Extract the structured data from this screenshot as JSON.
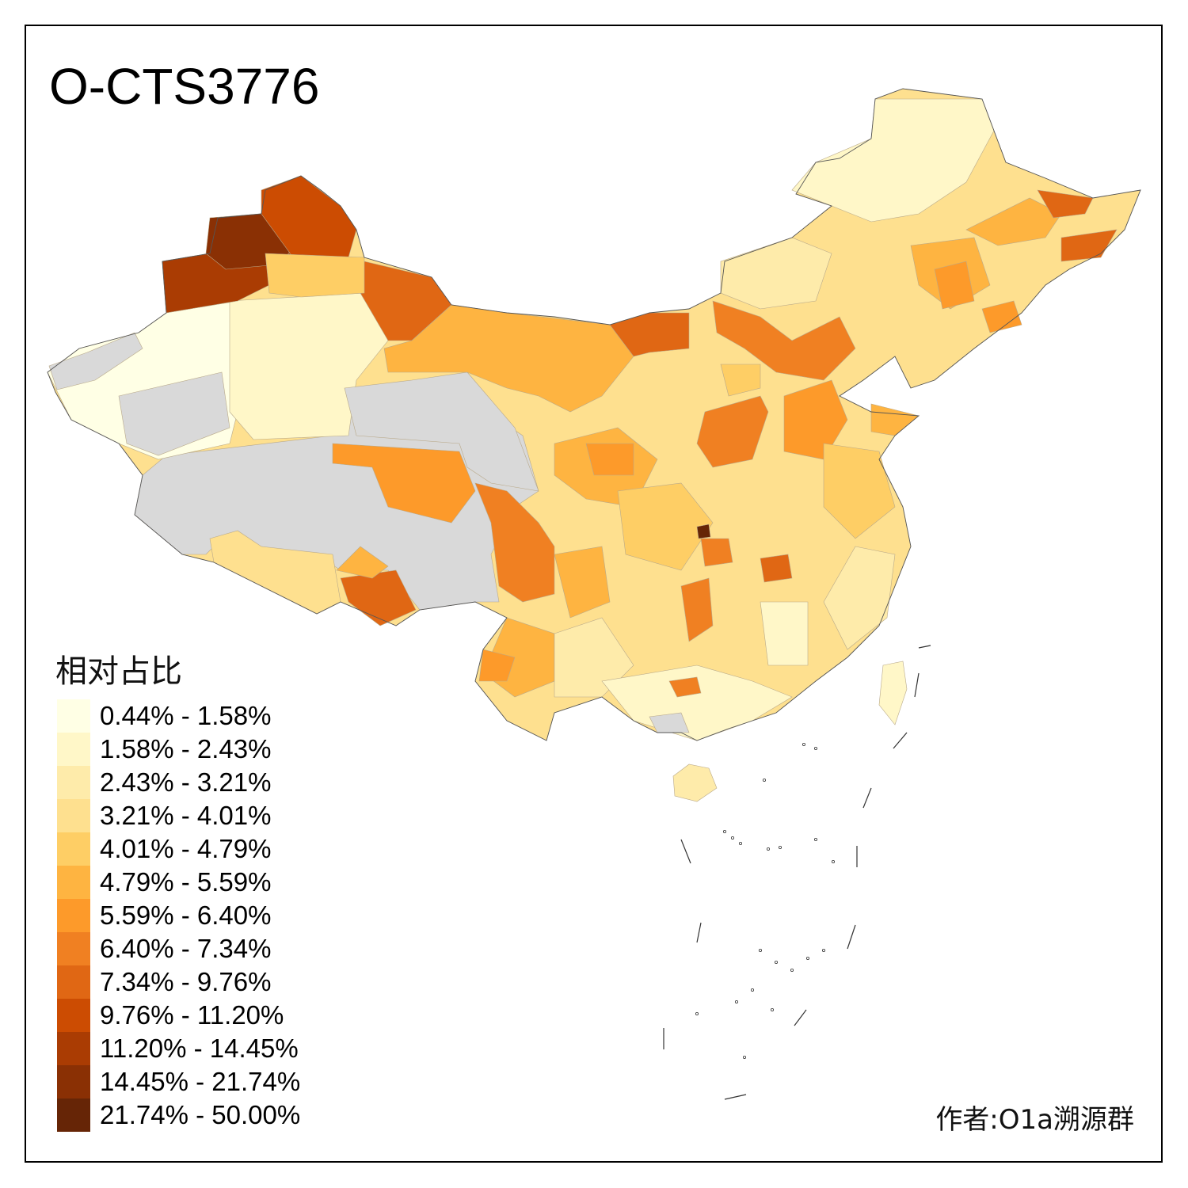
{
  "title": "O-CTS3776",
  "legend": {
    "title": "相对占比",
    "items": [
      {
        "label": "0.44% - 1.58%",
        "color": "#FFFFE5"
      },
      {
        "label": "1.58% - 2.43%",
        "color": "#FFF7C8"
      },
      {
        "label": "2.43% - 3.21%",
        "color": "#FEEBAA"
      },
      {
        "label": "3.21% - 4.01%",
        "color": "#FEE08F"
      },
      {
        "label": "4.01% - 4.79%",
        "color": "#FECE65"
      },
      {
        "label": "4.79% - 5.59%",
        "color": "#FEB441"
      },
      {
        "label": "5.59% - 6.40%",
        "color": "#FD9A2A"
      },
      {
        "label": "6.40% - 7.34%",
        "color": "#F08022"
      },
      {
        "label": "7.34% - 9.76%",
        "color": "#E06714"
      },
      {
        "label": "9.76% - 11.20%",
        "color": "#CC4C02"
      },
      {
        "label": "11.20% - 14.45%",
        "color": "#AA3C03"
      },
      {
        "label": "14.45% - 21.74%",
        "color": "#8A3004"
      },
      {
        "label": "21.74% - 50.00%",
        "color": "#662506"
      }
    ],
    "no_data_color": "#D9D9D9"
  },
  "author": "作者:O1a溯源群"
}
